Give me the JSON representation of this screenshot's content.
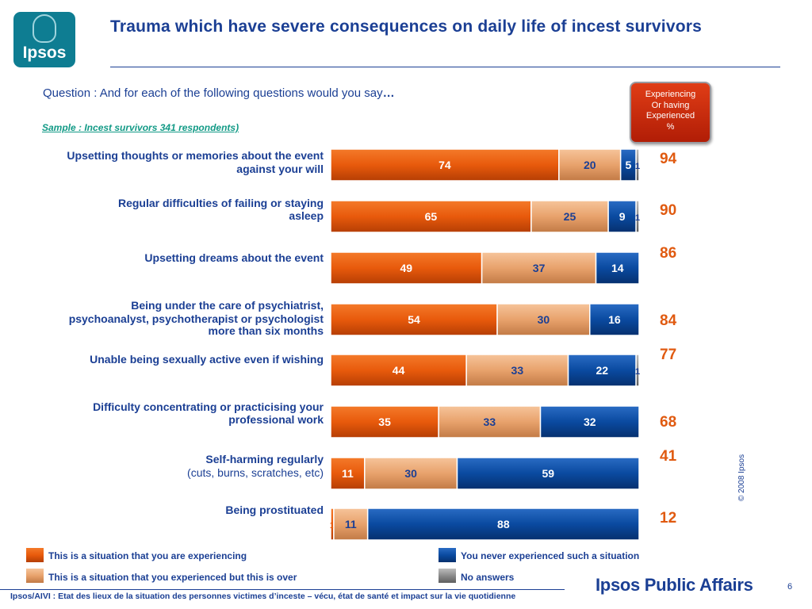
{
  "logo": {
    "text": "Ipsos"
  },
  "title": "Trauma which have severe consequences on daily life of incest survivors",
  "question": {
    "text": "Question : And for each of the following questions would you say",
    "dots": "…"
  },
  "sample": "Sample : Incest survivors 341 respondents)",
  "experiencing_badge": {
    "lines": [
      "Experiencing",
      "Or having",
      "Experienced",
      "%"
    ]
  },
  "chart_data": {
    "type": "bar",
    "orientation": "horizontal",
    "stacked": true,
    "xlim": [
      0,
      100
    ],
    "categories": [
      {
        "label": "Upsetting thoughts or memories about the event against your will",
        "sublabel": ""
      },
      {
        "label": "Regular difficulties of failing or staying asleep",
        "sublabel": ""
      },
      {
        "label": "Upsetting dreams about the event",
        "sublabel": ""
      },
      {
        "label": "Being under the care of psychiatrist, psychoanalyst, psychotherapist or psychologist more than six months",
        "sublabel": ""
      },
      {
        "label": "Unable being sexually active even if wishing",
        "sublabel": ""
      },
      {
        "label": "Difficulty concentrating or practicising your professional work",
        "sublabel": ""
      },
      {
        "label": "Self-harming regularly",
        "sublabel": "(cuts, burns, scratches, etc)"
      },
      {
        "label": "Being prostituated",
        "sublabel": ""
      }
    ],
    "series": [
      {
        "name": "This is a situation that you are experiencing",
        "color": "#e85a0c",
        "values": [
          74,
          65,
          49,
          54,
          44,
          35,
          11,
          1
        ]
      },
      {
        "name": "This is a situation that you experienced but this is over",
        "color": "#e8a26c",
        "values": [
          20,
          25,
          37,
          30,
          33,
          33,
          30,
          11
        ]
      },
      {
        "name": "You never experienced such a situation",
        "color": "#0a4aa0",
        "values": [
          5,
          9,
          14,
          16,
          22,
          32,
          59,
          88
        ]
      },
      {
        "name": "No answers",
        "color": "#8c8c8c",
        "values": [
          1,
          1,
          0,
          0,
          1,
          0,
          0,
          0
        ]
      }
    ],
    "experiencing_total": [
      94,
      90,
      86,
      84,
      77,
      68,
      41,
      12
    ]
  },
  "legend_colors": {
    "orange": "#e85a0c",
    "light_orange": "#e8a26c",
    "blue": "#0a4aa0",
    "grey": "#8c8c8c",
    "title_blue": "#1b3f94",
    "total_orange": "#e05a10"
  },
  "copyright": "© 2008 Ipsos",
  "footer": "Ipsos/AIVI : Etat des lieux de la situation des personnes victimes d’inceste – vécu, état de santé et impact sur la vie quotidienne",
  "brand": "Ipsos Public Affairs",
  "page_number": "6"
}
